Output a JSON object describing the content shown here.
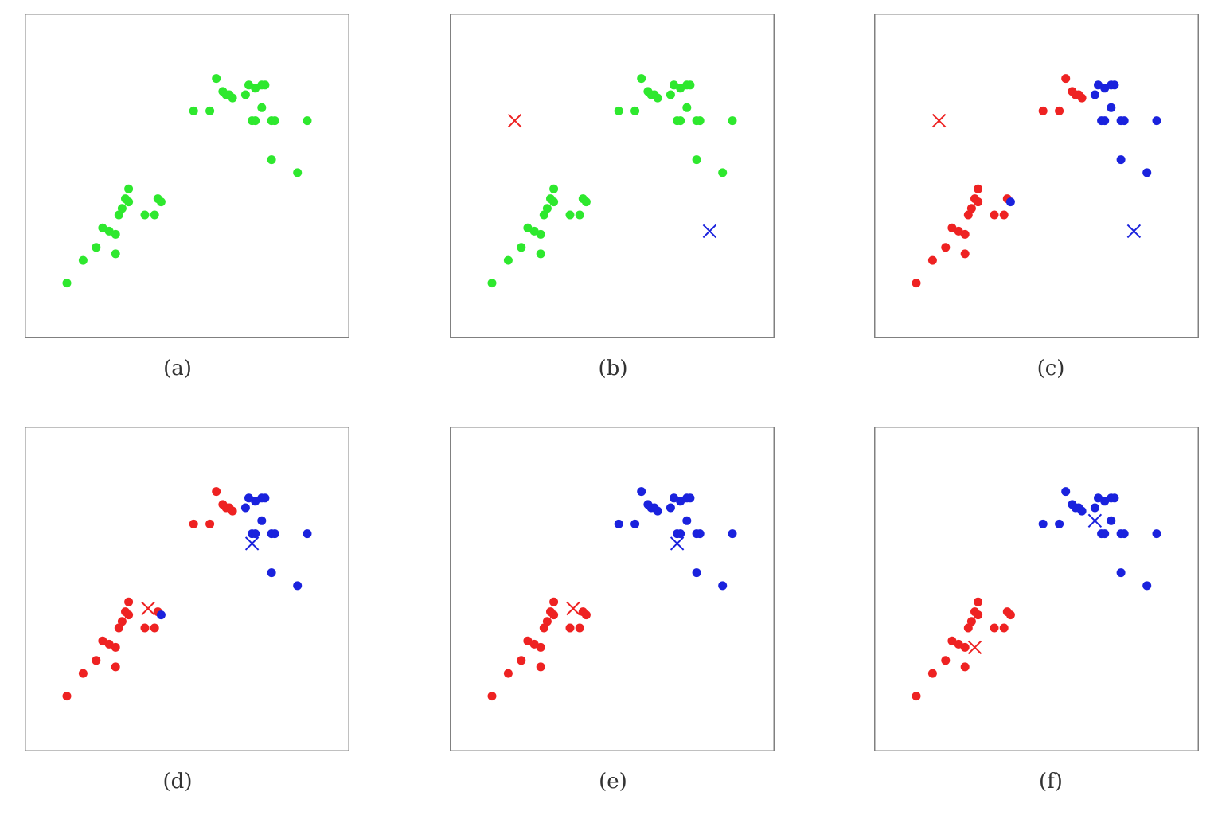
{
  "colors": {
    "unassigned": "#2ee82e",
    "cluster_red": "#ee2222",
    "cluster_blue": "#1a22dd",
    "frame": "#808080"
  },
  "captions": [
    "(a)",
    "(b)",
    "(c)",
    "(d)",
    "(e)",
    "(f)"
  ],
  "chart_data": [
    {
      "type": "scatter",
      "caption": "(a)",
      "xlim": [
        0,
        100
      ],
      "ylim": [
        0,
        100
      ],
      "grid": false,
      "x": [
        13,
        18,
        22,
        26,
        28,
        28,
        24,
        29,
        30,
        32,
        31,
        37,
        32,
        40,
        41,
        42,
        52,
        57,
        62,
        63,
        61,
        59,
        64,
        70,
        71,
        68,
        71,
        69,
        74,
        73,
        76,
        77,
        73,
        87,
        76,
        84
      ],
      "y": [
        17,
        24,
        28,
        33,
        32,
        26,
        34,
        38,
        40,
        42,
        43,
        38,
        46,
        38,
        43,
        42,
        70,
        70,
        75,
        75,
        76,
        80,
        74,
        67,
        67,
        75,
        77,
        78,
        78,
        78,
        67,
        67,
        71,
        67,
        55,
        51
      ],
      "labels": [
        0,
        0,
        0,
        0,
        0,
        0,
        0,
        0,
        0,
        0,
        0,
        0,
        0,
        0,
        0,
        0,
        0,
        0,
        0,
        0,
        0,
        0,
        0,
        0,
        0,
        0,
        0,
        0,
        0,
        0,
        0,
        0,
        0,
        0,
        0,
        0
      ],
      "centroids": []
    },
    {
      "type": "scatter",
      "caption": "(b)",
      "xlim": [
        0,
        100
      ],
      "ylim": [
        0,
        100
      ],
      "grid": false,
      "x": [
        13,
        18,
        22,
        26,
        28,
        28,
        24,
        29,
        30,
        32,
        31,
        37,
        32,
        40,
        41,
        42,
        52,
        57,
        62,
        63,
        61,
        59,
        64,
        70,
        71,
        68,
        71,
        69,
        74,
        73,
        76,
        77,
        73,
        87,
        76,
        84
      ],
      "y": [
        17,
        24,
        28,
        33,
        32,
        26,
        34,
        38,
        40,
        42,
        43,
        38,
        46,
        38,
        43,
        42,
        70,
        70,
        75,
        75,
        76,
        80,
        74,
        67,
        67,
        75,
        77,
        78,
        78,
        78,
        67,
        67,
        71,
        67,
        55,
        51
      ],
      "labels": [
        0,
        0,
        0,
        0,
        0,
        0,
        0,
        0,
        0,
        0,
        0,
        0,
        0,
        0,
        0,
        0,
        0,
        0,
        0,
        0,
        0,
        0,
        0,
        0,
        0,
        0,
        0,
        0,
        0,
        0,
        0,
        0,
        0,
        0,
        0,
        0
      ],
      "centroids": [
        {
          "x": 20,
          "y": 67,
          "cluster": "red"
        },
        {
          "x": 80,
          "y": 33,
          "cluster": "blue"
        }
      ]
    },
    {
      "type": "scatter",
      "caption": "(c)",
      "xlim": [
        0,
        100
      ],
      "ylim": [
        0,
        100
      ],
      "grid": false,
      "x": [
        13,
        18,
        22,
        26,
        28,
        28,
        24,
        29,
        30,
        32,
        31,
        37,
        32,
        40,
        41,
        42,
        52,
        57,
        62,
        63,
        61,
        59,
        64,
        70,
        71,
        68,
        71,
        69,
        74,
        73,
        76,
        77,
        73,
        87,
        76,
        84
      ],
      "y": [
        17,
        24,
        28,
        33,
        32,
        26,
        34,
        38,
        40,
        42,
        43,
        38,
        46,
        38,
        43,
        42,
        70,
        70,
        75,
        75,
        76,
        80,
        74,
        67,
        67,
        75,
        77,
        78,
        78,
        78,
        67,
        67,
        71,
        67,
        55,
        51
      ],
      "labels": [
        1,
        1,
        1,
        1,
        1,
        1,
        1,
        1,
        1,
        1,
        1,
        1,
        1,
        1,
        1,
        2,
        1,
        1,
        1,
        1,
        1,
        1,
        1,
        2,
        2,
        2,
        2,
        2,
        2,
        2,
        2,
        2,
        2,
        2,
        2,
        2
      ],
      "centroids": [
        {
          "x": 20,
          "y": 67,
          "cluster": "red"
        },
        {
          "x": 80,
          "y": 33,
          "cluster": "blue"
        }
      ]
    },
    {
      "type": "scatter",
      "caption": "(d)",
      "xlim": [
        0,
        100
      ],
      "ylim": [
        0,
        100
      ],
      "grid": false,
      "x": [
        13,
        18,
        22,
        26,
        28,
        28,
        24,
        29,
        30,
        32,
        31,
        37,
        32,
        40,
        41,
        42,
        52,
        57,
        62,
        63,
        61,
        59,
        64,
        70,
        71,
        68,
        71,
        69,
        74,
        73,
        76,
        77,
        73,
        87,
        76,
        84
      ],
      "y": [
        17,
        24,
        28,
        33,
        32,
        26,
        34,
        38,
        40,
        42,
        43,
        38,
        46,
        38,
        43,
        42,
        70,
        70,
        75,
        75,
        76,
        80,
        74,
        67,
        67,
        75,
        77,
        78,
        78,
        78,
        67,
        67,
        71,
        67,
        55,
        51
      ],
      "labels": [
        1,
        1,
        1,
        1,
        1,
        1,
        1,
        1,
        1,
        1,
        1,
        1,
        1,
        1,
        1,
        2,
        1,
        1,
        1,
        1,
        1,
        1,
        1,
        2,
        2,
        2,
        2,
        2,
        2,
        2,
        2,
        2,
        2,
        2,
        2,
        2
      ],
      "centroids": [
        {
          "x": 38,
          "y": 44,
          "cluster": "red"
        },
        {
          "x": 70,
          "y": 64,
          "cluster": "blue"
        }
      ]
    },
    {
      "type": "scatter",
      "caption": "(e)",
      "xlim": [
        0,
        100
      ],
      "ylim": [
        0,
        100
      ],
      "grid": false,
      "x": [
        13,
        18,
        22,
        26,
        28,
        28,
        24,
        29,
        30,
        32,
        31,
        37,
        32,
        40,
        41,
        42,
        52,
        57,
        62,
        63,
        61,
        59,
        64,
        70,
        71,
        68,
        71,
        69,
        74,
        73,
        76,
        77,
        73,
        87,
        76,
        84
      ],
      "y": [
        17,
        24,
        28,
        33,
        32,
        26,
        34,
        38,
        40,
        42,
        43,
        38,
        46,
        38,
        43,
        42,
        70,
        70,
        75,
        75,
        76,
        80,
        74,
        67,
        67,
        75,
        77,
        78,
        78,
        78,
        67,
        67,
        71,
        67,
        55,
        51
      ],
      "labels": [
        1,
        1,
        1,
        1,
        1,
        1,
        1,
        1,
        1,
        1,
        1,
        1,
        1,
        1,
        1,
        1,
        2,
        2,
        2,
        2,
        2,
        2,
        2,
        2,
        2,
        2,
        2,
        2,
        2,
        2,
        2,
        2,
        2,
        2,
        2,
        2
      ],
      "centroids": [
        {
          "x": 38,
          "y": 44,
          "cluster": "red"
        },
        {
          "x": 70,
          "y": 64,
          "cluster": "blue"
        }
      ]
    },
    {
      "type": "scatter",
      "caption": "(f)",
      "xlim": [
        0,
        100
      ],
      "ylim": [
        0,
        100
      ],
      "grid": false,
      "x": [
        13,
        18,
        22,
        26,
        28,
        28,
        24,
        29,
        30,
        32,
        31,
        37,
        32,
        40,
        41,
        42,
        52,
        57,
        62,
        63,
        61,
        59,
        64,
        70,
        71,
        68,
        71,
        69,
        74,
        73,
        76,
        77,
        73,
        87,
        76,
        84
      ],
      "y": [
        17,
        24,
        28,
        33,
        32,
        26,
        34,
        38,
        40,
        42,
        43,
        38,
        46,
        38,
        43,
        42,
        70,
        70,
        75,
        75,
        76,
        80,
        74,
        67,
        67,
        75,
        77,
        78,
        78,
        78,
        67,
        67,
        71,
        67,
        55,
        51
      ],
      "labels": [
        1,
        1,
        1,
        1,
        1,
        1,
        1,
        1,
        1,
        1,
        1,
        1,
        1,
        1,
        1,
        1,
        2,
        2,
        2,
        2,
        2,
        2,
        2,
        2,
        2,
        2,
        2,
        2,
        2,
        2,
        2,
        2,
        2,
        2,
        2,
        2
      ],
      "centroids": [
        {
          "x": 31,
          "y": 32,
          "cluster": "red"
        },
        {
          "x": 68,
          "y": 71,
          "cluster": "blue"
        }
      ]
    }
  ]
}
